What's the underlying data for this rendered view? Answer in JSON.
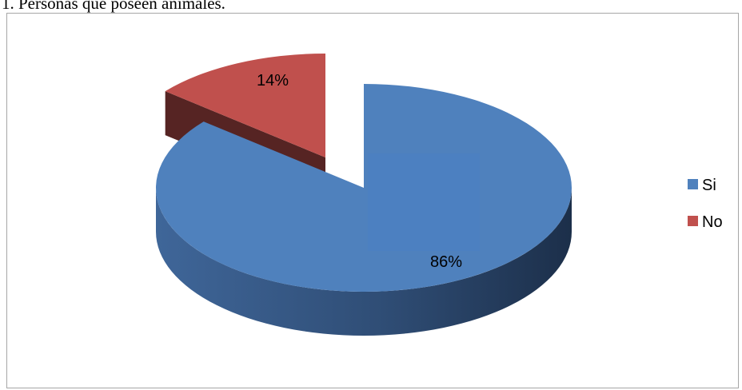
{
  "caption": "1. Personas que poseen animales.",
  "chart_data": {
    "type": "pie",
    "title": "",
    "categories": [
      "Si",
      "No"
    ],
    "values": [
      86,
      14
    ],
    "labels": [
      "86%",
      "14%"
    ],
    "colors": [
      "#4f81bd",
      "#c0504d"
    ],
    "exploded": [
      "No"
    ],
    "three_d": true,
    "legend_position": "right"
  }
}
